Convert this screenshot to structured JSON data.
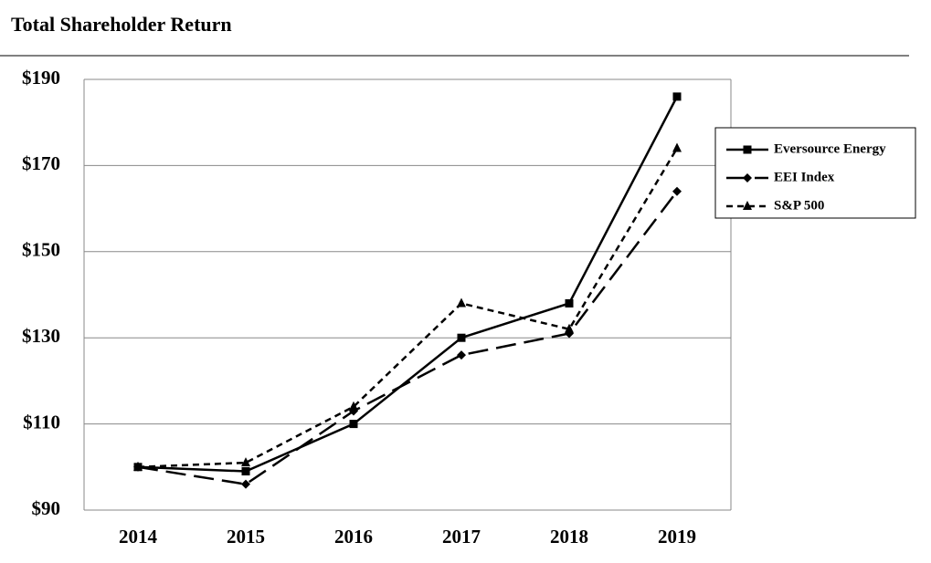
{
  "chart_data": {
    "type": "line",
    "title": "Total Shareholder Return",
    "categories": [
      "2014",
      "2015",
      "2016",
      "2017",
      "2018",
      "2019"
    ],
    "series": [
      {
        "name": "Eversource Energy",
        "color": "#000000",
        "dash": "solid",
        "marker": "square",
        "values": [
          100,
          99,
          110,
          130,
          138,
          186
        ]
      },
      {
        "name": "EEI Index",
        "color": "#000000",
        "dash": "long",
        "marker": "diamond",
        "values": [
          100,
          96,
          113,
          126,
          131,
          164
        ]
      },
      {
        "name": "S&P 500",
        "color": "#000000",
        "dash": "short",
        "marker": "triangle",
        "values": [
          100,
          101,
          114,
          138,
          132,
          174
        ]
      }
    ],
    "ylim": [
      90,
      190
    ],
    "yticks": [
      {
        "value": 90,
        "label": "$90"
      },
      {
        "value": 110,
        "label": "$110"
      },
      {
        "value": 130,
        "label": "$130"
      },
      {
        "value": 150,
        "label": "$150"
      },
      {
        "value": 170,
        "label": "$170"
      },
      {
        "value": 190,
        "label": "$190"
      }
    ],
    "grid": true,
    "legend": "right"
  }
}
